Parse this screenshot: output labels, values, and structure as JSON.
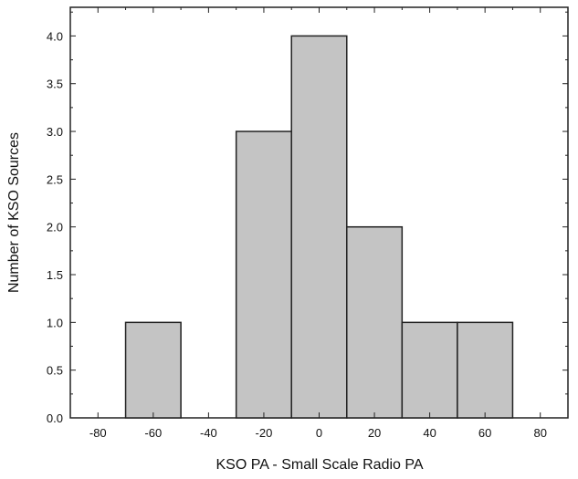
{
  "chart_data": {
    "type": "bar",
    "subtype": "histogram",
    "title": "",
    "xlabel": "KSO PA - Small Scale Radio PA",
    "ylabel": "Number of KSO Sources",
    "xlim": [
      -90,
      90
    ],
    "ylim": [
      0,
      4.3
    ],
    "bin_width": 20,
    "bins": [
      {
        "start": -70,
        "end": -50,
        "value": 1
      },
      {
        "start": -30,
        "end": -10,
        "value": 3
      },
      {
        "start": -10,
        "end": 10,
        "value": 4
      },
      {
        "start": 10,
        "end": 30,
        "value": 2
      },
      {
        "start": 30,
        "end": 50,
        "value": 1
      },
      {
        "start": 50,
        "end": 70,
        "value": 1
      }
    ],
    "x_ticks": [
      -80,
      -60,
      -40,
      -20,
      0,
      20,
      40,
      60,
      80
    ],
    "x_tick_labels": [
      "-80",
      "-60",
      "-40",
      "-20",
      "0",
      "20",
      "40",
      "60",
      "80"
    ],
    "y_ticks": [
      0,
      0.5,
      1,
      1.5,
      2,
      2.5,
      3,
      3.5,
      4
    ],
    "y_tick_labels": [
      "0.0",
      "0.5",
      "1.0",
      "1.5",
      "2.0",
      "2.5",
      "3.0",
      "3.5",
      "4.0"
    ],
    "grid": false,
    "legend": "none",
    "colors": {
      "bar_fill": "#c4c4c4",
      "bar_stroke": "#222222",
      "axis": "#222222"
    }
  }
}
